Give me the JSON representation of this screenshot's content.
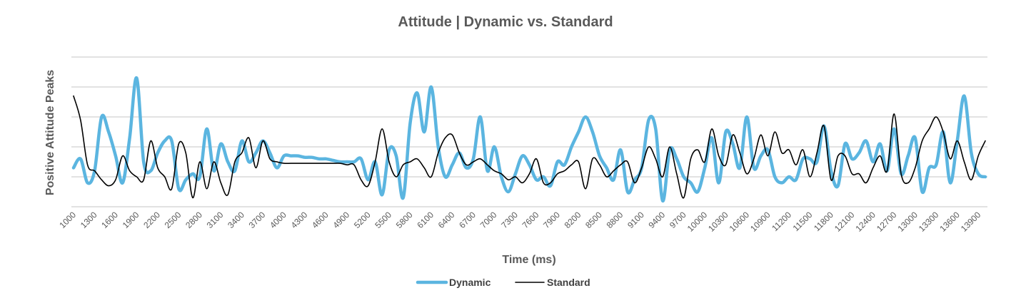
{
  "chart_data": {
    "type": "line",
    "title": "Attitude | Dynamic vs. Standard",
    "xlabel": "Time (ms)",
    "ylabel": "Positive Attitude Peaks",
    "x_tick_labels": [
      "1000",
      "1300",
      "1600",
      "1900",
      "2200",
      "2500",
      "2800",
      "3100",
      "3400",
      "3700",
      "4000",
      "4300",
      "4600",
      "4900",
      "5200",
      "5500",
      "5800",
      "6100",
      "6400",
      "6700",
      "7000",
      "7300",
      "7600",
      "7900",
      "8200",
      "8500",
      "8800",
      "9100",
      "9400",
      "9700",
      "10000",
      "10300",
      "10600",
      "10900",
      "11200",
      "11500",
      "11800",
      "12100",
      "12400",
      "12700",
      "13000",
      "13300",
      "13600",
      "13900"
    ],
    "x_range": [
      1000,
      14000
    ],
    "y_range": [
      0,
      5
    ],
    "y_gridlines": [
      0,
      1,
      2,
      3,
      4,
      5
    ],
    "y_tick_labels_visible": false,
    "legend_position": "bottom",
    "series": [
      {
        "name": "Dynamic",
        "color": "#5bb5e0",
        "x": [
          1000,
          1100,
          1200,
          1300,
          1400,
          1500,
          1600,
          1700,
          1800,
          1900,
          2000,
          2100,
          2200,
          2300,
          2400,
          2500,
          2600,
          2700,
          2800,
          2900,
          3000,
          3100,
          3200,
          3300,
          3400,
          3500,
          3600,
          3700,
          3800,
          3900,
          4000,
          4100,
          4200,
          4300,
          4400,
          4500,
          4600,
          4700,
          4800,
          4900,
          5000,
          5100,
          5200,
          5300,
          5400,
          5500,
          5600,
          5700,
          5800,
          5900,
          6000,
          6100,
          6200,
          6300,
          6400,
          6500,
          6600,
          6700,
          6800,
          6900,
          7000,
          7100,
          7200,
          7300,
          7400,
          7500,
          7600,
          7700,
          7800,
          7900,
          8000,
          8100,
          8200,
          8300,
          8400,
          8500,
          8600,
          8700,
          8800,
          8900,
          9000,
          9100,
          9200,
          9300,
          9400,
          9500,
          9600,
          9700,
          9800,
          9900,
          10000,
          10100,
          10200,
          10300,
          10400,
          10500,
          10600,
          10700,
          10800,
          10900,
          11000,
          11100,
          11200,
          11300,
          11400,
          11500,
          11600,
          11700,
          11800,
          11900,
          12000,
          12100,
          12200,
          12300,
          12400,
          12500,
          12600,
          12700,
          12800,
          12900,
          13000,
          13100,
          13200,
          13300,
          13400,
          13500,
          13600,
          13700,
          13800,
          13900,
          14000
        ],
        "values": [
          1.3,
          1.6,
          0.8,
          1.2,
          3.0,
          2.5,
          1.7,
          0.8,
          2.3,
          4.3,
          1.5,
          1.2,
          1.8,
          2.2,
          2.2,
          0.6,
          0.9,
          1.1,
          1.0,
          2.6,
          1.2,
          2.1,
          1.5,
          1.2,
          2.2,
          1.5,
          1.8,
          2.2,
          1.8,
          1.3,
          1.7,
          1.7,
          1.7,
          1.65,
          1.65,
          1.6,
          1.6,
          1.55,
          1.5,
          1.5,
          1.5,
          1.6,
          0.9,
          1.5,
          0.4,
          1.9,
          1.7,
          0.3,
          2.8,
          3.8,
          2.5,
          4.0,
          2.0,
          1.0,
          1.4,
          1.8,
          1.3,
          1.6,
          3.0,
          1.2,
          2.0,
          1.0,
          0.5,
          1.1,
          1.7,
          1.4,
          0.9,
          1.0,
          0.7,
          1.5,
          1.4,
          2.0,
          2.5,
          3.0,
          2.5,
          1.7,
          1.3,
          0.9,
          1.9,
          0.5,
          0.9,
          1.3,
          2.9,
          2.6,
          0.2,
          1.9,
          1.6,
          1.0,
          0.8,
          0.5,
          1.3,
          2.3,
          0.8,
          2.5,
          2.1,
          1.3,
          3.0,
          1.3,
          1.7,
          1.9,
          1.0,
          0.8,
          1.0,
          0.9,
          1.6,
          1.6,
          1.5,
          2.7,
          1.2,
          0.7,
          2.1,
          1.6,
          1.8,
          2.2,
          1.5,
          2.1,
          1.2,
          2.6,
          1.1,
          1.7,
          2.3,
          0.5,
          1.3,
          1.4,
          2.5,
          0.8,
          2.2,
          3.7,
          1.8,
          1.1,
          1.0
        ]
      },
      {
        "name": "Standard",
        "color": "#000000",
        "x": [
          1000,
          1100,
          1200,
          1300,
          1400,
          1500,
          1600,
          1700,
          1800,
          1900,
          2000,
          2100,
          2200,
          2300,
          2400,
          2500,
          2600,
          2700,
          2800,
          2900,
          3000,
          3100,
          3200,
          3300,
          3400,
          3500,
          3600,
          3700,
          3800,
          3900,
          4000,
          4100,
          4200,
          4300,
          4400,
          4500,
          4600,
          4700,
          4800,
          4900,
          5000,
          5100,
          5200,
          5300,
          5400,
          5500,
          5600,
          5700,
          5800,
          5900,
          6000,
          6100,
          6200,
          6300,
          6400,
          6500,
          6600,
          6700,
          6800,
          6900,
          7000,
          7100,
          7200,
          7300,
          7400,
          7500,
          7600,
          7700,
          7800,
          7900,
          8000,
          8100,
          8200,
          8300,
          8400,
          8500,
          8600,
          8700,
          8800,
          8900,
          9000,
          9100,
          9200,
          9300,
          9400,
          9500,
          9600,
          9700,
          9800,
          9900,
          10000,
          10100,
          10200,
          10300,
          10400,
          10500,
          10600,
          10700,
          10800,
          10900,
          11000,
          11100,
          11200,
          11300,
          11400,
          11500,
          11600,
          11700,
          11800,
          11900,
          12000,
          12100,
          12200,
          12300,
          12400,
          12500,
          12600,
          12700,
          12800,
          12900,
          13000,
          13100,
          13200,
          13300,
          13400,
          13500,
          13600,
          13700,
          13800,
          13900,
          14000
        ],
        "values": [
          3.7,
          2.9,
          1.4,
          1.2,
          0.9,
          0.7,
          0.9,
          1.7,
          1.2,
          1.0,
          0.9,
          2.2,
          1.3,
          1.0,
          0.6,
          2.1,
          1.8,
          0.3,
          1.5,
          0.6,
          1.5,
          0.8,
          0.4,
          1.5,
          1.8,
          2.3,
          1.3,
          2.2,
          1.6,
          1.5,
          1.45,
          1.45,
          1.45,
          1.45,
          1.45,
          1.45,
          1.45,
          1.45,
          1.45,
          1.4,
          1.4,
          0.9,
          0.7,
          1.5,
          2.6,
          1.5,
          1.0,
          1.4,
          1.5,
          1.6,
          1.3,
          1.0,
          1.8,
          2.3,
          2.4,
          1.8,
          1.4,
          1.5,
          1.6,
          1.4,
          1.2,
          1.1,
          0.9,
          1.0,
          0.8,
          1.1,
          1.6,
          0.8,
          0.8,
          1.1,
          1.2,
          1.4,
          1.5,
          0.6,
          1.6,
          1.4,
          1.0,
          1.2,
          1.4,
          1.5,
          0.8,
          1.3,
          2.0,
          1.6,
          1.0,
          2.0,
          1.1,
          0.3,
          1.6,
          1.9,
          1.5,
          2.6,
          1.7,
          1.4,
          2.4,
          1.8,
          1.1,
          1.6,
          2.4,
          1.7,
          2.5,
          1.8,
          1.9,
          1.4,
          1.9,
          1.0,
          1.8,
          2.7,
          0.9,
          1.7,
          1.7,
          1.1,
          1.1,
          0.8,
          1.3,
          1.7,
          1.2,
          3.1,
          1.1,
          0.8,
          1.3,
          2.2,
          2.6,
          3.0,
          2.5,
          1.6,
          2.2,
          1.5,
          0.9,
          1.7,
          2.2
        ]
      }
    ]
  }
}
